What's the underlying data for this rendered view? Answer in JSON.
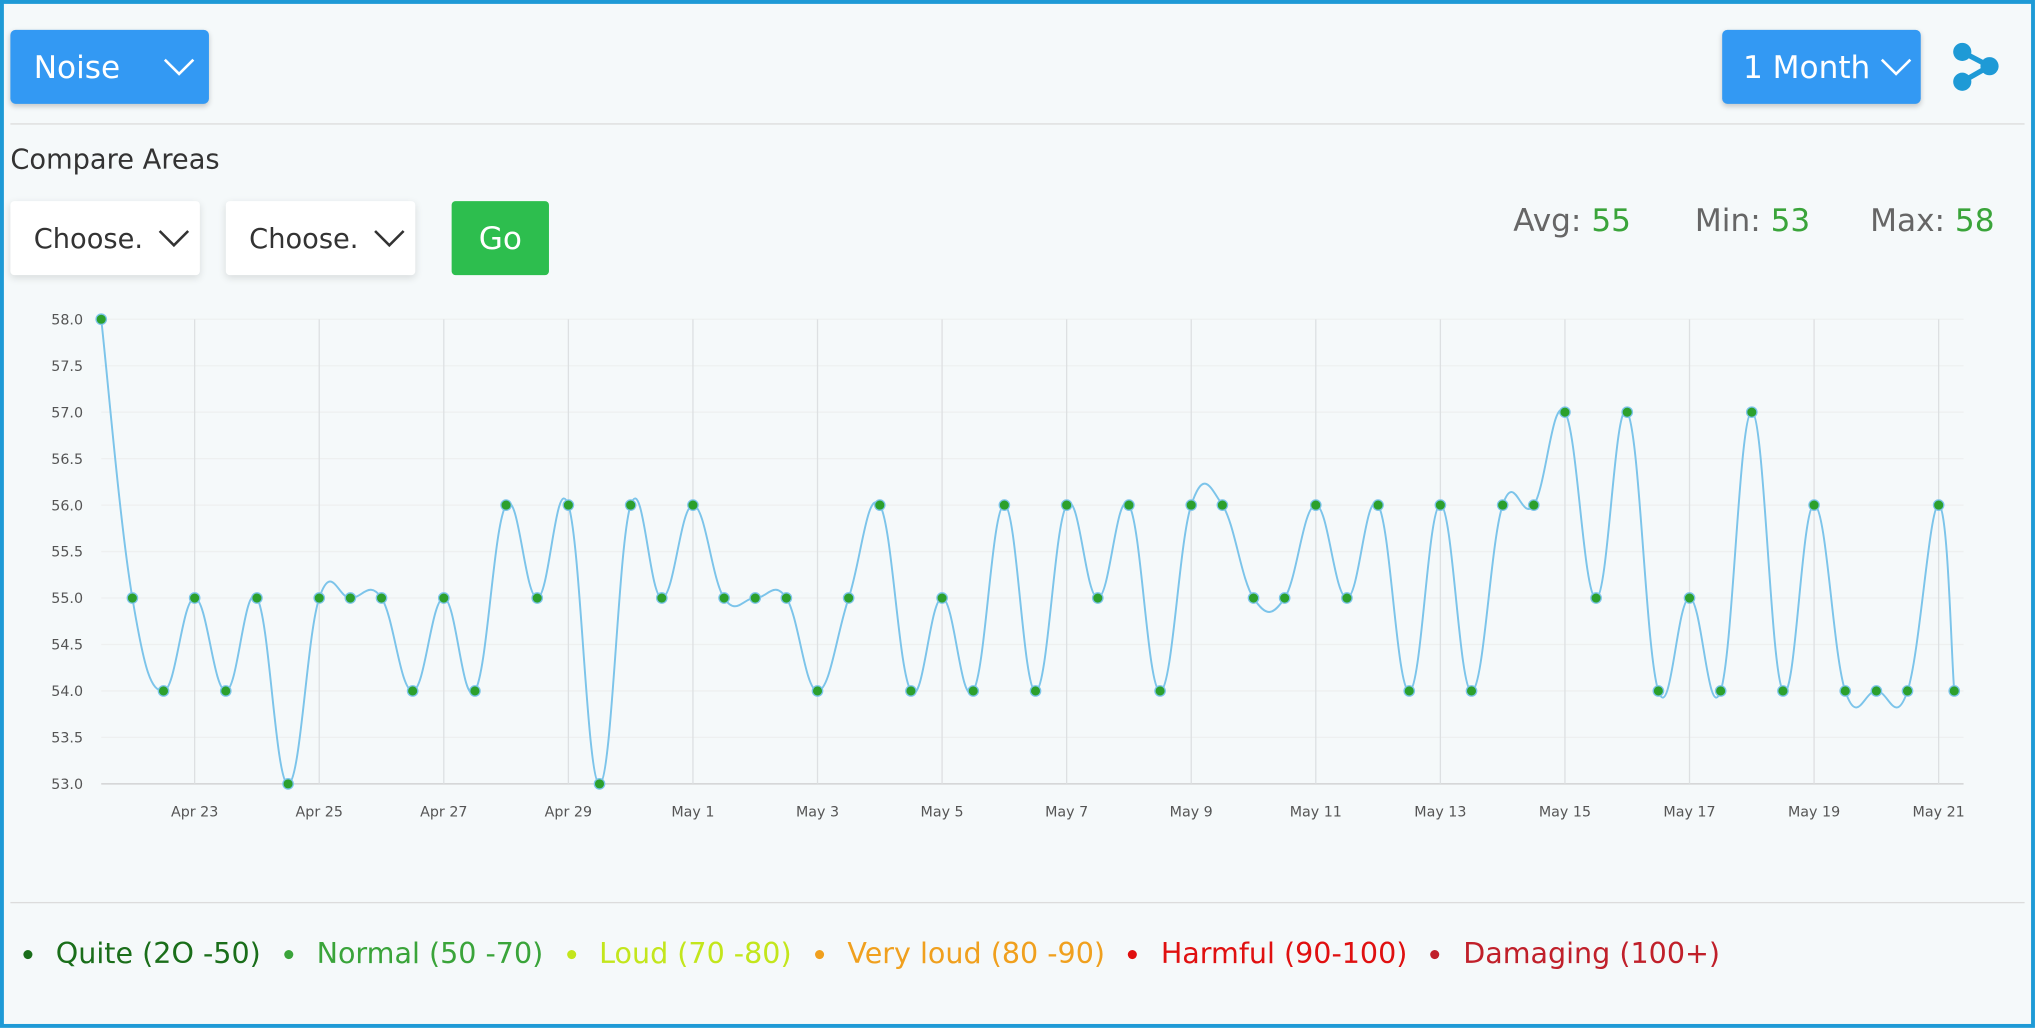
{
  "header": {
    "metric": "Noise",
    "period": "1 Month"
  },
  "compare": {
    "title": "Compare Areas",
    "area1": "Choose.",
    "area2": "Choose.",
    "button": "Go"
  },
  "stats": [
    {
      "label": "Avg:",
      "value": "55"
    },
    {
      "label": "Min:",
      "value": "53"
    },
    {
      "label": "Max:",
      "value": "58"
    }
  ],
  "chart_data": {
    "type": "line",
    "color": "#7cc4ea",
    "marker_color": "#2ca02c",
    "series": [
      {
        "x": [
          -0.5,
          0,
          0.5,
          1,
          1.5,
          2,
          2.5,
          3,
          3.5,
          4,
          4.5,
          5,
          5.5,
          6,
          6.5,
          7,
          7.5,
          8,
          8.5,
          9,
          9.5,
          10,
          10.5,
          11,
          11.5,
          12,
          12.5,
          13,
          13.5,
          14,
          14.5,
          15,
          15.5,
          16,
          16.5,
          17,
          17.5,
          18,
          18.5,
          19,
          19.5,
          20,
          20.5,
          21,
          21.5,
          22,
          22.5,
          23,
          23.5,
          24,
          24.5,
          25,
          25.5,
          26,
          26.5,
          27,
          27.5,
          28,
          28.5,
          29,
          29.25
        ],
        "values": [
          58,
          55,
          54,
          55,
          54,
          55,
          53,
          55,
          55,
          55,
          54,
          55,
          54,
          56,
          55,
          56,
          53,
          56,
          55,
          56,
          55,
          55,
          55,
          54,
          55,
          56,
          54,
          55,
          54,
          56,
          54,
          56,
          55,
          56,
          54,
          56,
          56,
          55,
          55,
          56,
          55,
          56,
          54,
          56,
          54,
          56,
          56,
          57,
          55,
          57,
          54,
          55,
          54,
          57,
          54,
          56,
          54,
          54,
          54,
          56,
          54
        ]
      }
    ],
    "xlim": [
      -0.5,
      29.4
    ],
    "xticks": [
      {
        "value": 1,
        "label": "Apr 23"
      },
      {
        "value": 3,
        "label": "Apr 25"
      },
      {
        "value": 5,
        "label": "Apr 27"
      },
      {
        "value": 7,
        "label": "Apr 29"
      },
      {
        "value": 9,
        "label": "May 1"
      },
      {
        "value": 11,
        "label": "May 3"
      },
      {
        "value": 13,
        "label": "May 5"
      },
      {
        "value": 15,
        "label": "May 7"
      },
      {
        "value": 17,
        "label": "May 9"
      },
      {
        "value": 19,
        "label": "May 11"
      },
      {
        "value": 21,
        "label": "May 13"
      },
      {
        "value": 23,
        "label": "May 15"
      },
      {
        "value": 25,
        "label": "May 17"
      },
      {
        "value": 27,
        "label": "May 19"
      },
      {
        "value": 29,
        "label": "May 21"
      }
    ],
    "ylim": [
      53,
      58
    ],
    "yticks": [
      {
        "value": 53,
        "label": "53.0"
      },
      {
        "value": 53.5,
        "label": "53.5"
      },
      {
        "value": 54,
        "label": "54.0"
      },
      {
        "value": 54.5,
        "label": "54.5"
      },
      {
        "value": 55,
        "label": "55.0"
      },
      {
        "value": 55.5,
        "label": "55.5"
      },
      {
        "value": 56,
        "label": "56.0"
      },
      {
        "value": 56.5,
        "label": "56.5"
      },
      {
        "value": 57,
        "label": "57.0"
      },
      {
        "value": 57.5,
        "label": "57.5"
      },
      {
        "value": 58,
        "label": "58.0"
      }
    ],
    "grid": true
  },
  "legend": [
    {
      "label": "Quite (2O -50)",
      "color": "#1a6e1a"
    },
    {
      "label": "Normal (50 -70)",
      "color": "#3aa43a"
    },
    {
      "label": "Loud (70 -80)",
      "color": "#c3e61c"
    },
    {
      "label": "Very loud (80 -90)",
      "color": "#f0a01e"
    },
    {
      "label": "Harmful (90-100)",
      "color": "#e01010"
    },
    {
      "label": "Damaging (100+)",
      "color": "#c0202a"
    }
  ]
}
